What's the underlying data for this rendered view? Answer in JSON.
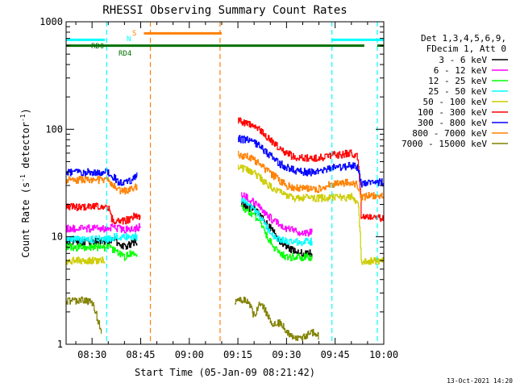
{
  "chart_data": {
    "type": "line",
    "title": "RHESSI Observing Summary Count Rates",
    "xlabel": "Start Time (05-Jan-09 08:21:42)",
    "ylabel_main": "Count Rate (s",
    "ylabel_sup1": "-1",
    "ylabel_mid": " detector",
    "ylabel_sup2": "-1",
    "ylabel_end": ")",
    "x_unit": "minutes since 08:00",
    "xlim": [
      22.0,
      120.0
    ],
    "ylim": [
      1,
      1000
    ],
    "yscale": "log",
    "x_ticks": [
      {
        "v": 30,
        "label": "08:30"
      },
      {
        "v": 45,
        "label": "08:45"
      },
      {
        "v": 60,
        "label": "09:00"
      },
      {
        "v": 75,
        "label": "09:15"
      },
      {
        "v": 90,
        "label": "09:30"
      },
      {
        "v": 105,
        "label": "09:45"
      },
      {
        "v": 120,
        "label": "10:00"
      }
    ],
    "y_ticks": [
      {
        "v": 1,
        "label": "1"
      },
      {
        "v": 10,
        "label": "10"
      },
      {
        "v": 100,
        "label": "100"
      },
      {
        "v": 1000,
        "label": "1000"
      }
    ],
    "legend_header": [
      "Det 1,3,4,5,6,9,",
      "FDecim 1, Att 0"
    ],
    "legend_position": "right",
    "series": [
      {
        "name": "3 - 6 keV",
        "color": "#000000",
        "segments": [
          [
            [
              22,
              9
            ],
            [
              35,
              9
            ],
            [
              37,
              9.5
            ],
            [
              38,
              8.5
            ],
            [
              40,
              8
            ],
            [
              41,
              8.5
            ],
            [
              42,
              8.5
            ],
            [
              43,
              9
            ],
            [
              44,
              9
            ]
          ],
          [
            [
              76,
              20
            ],
            [
              78,
              19
            ],
            [
              80,
              18
            ],
            [
              82,
              16
            ],
            [
              84,
              13
            ],
            [
              86,
              11
            ],
            [
              88,
              9
            ],
            [
              90,
              8
            ],
            [
              92,
              7.5
            ],
            [
              94,
              7.2
            ],
            [
              96,
              7
            ],
            [
              98,
              7
            ]
          ]
        ]
      },
      {
        "name": "6 - 12 keV",
        "color": "#ff00ff",
        "segments": [
          [
            [
              22,
              12
            ],
            [
              35,
              12
            ],
            [
              37,
              12.5
            ],
            [
              38,
              12
            ],
            [
              40,
              11.5
            ],
            [
              42,
              12
            ],
            [
              44,
              12
            ],
            [
              45,
              13
            ]
          ],
          [
            [
              76,
              25
            ],
            [
              78,
              23
            ],
            [
              80,
              21
            ],
            [
              82,
              18
            ],
            [
              84,
              16
            ],
            [
              86,
              14
            ],
            [
              88,
              13
            ],
            [
              90,
              12
            ],
            [
              92,
              11.5
            ],
            [
              94,
              11
            ],
            [
              96,
              11
            ],
            [
              98,
              11
            ]
          ]
        ]
      },
      {
        "name": "12 - 25 keV",
        "color": "#00ff00",
        "segments": [
          [
            [
              22,
              8
            ],
            [
              35,
              8
            ],
            [
              37,
              7.5
            ],
            [
              38,
              7
            ],
            [
              40,
              6.5
            ],
            [
              42,
              7
            ],
            [
              44,
              7
            ]
          ],
          [
            [
              76,
              19
            ],
            [
              78,
              17
            ],
            [
              80,
              16
            ],
            [
              82,
              13
            ],
            [
              84,
              10
            ],
            [
              86,
              8
            ],
            [
              88,
              7
            ],
            [
              90,
              6.5
            ],
            [
              92,
              6.5
            ],
            [
              94,
              6.5
            ],
            [
              96,
              6.5
            ],
            [
              98,
              6.5
            ]
          ]
        ]
      },
      {
        "name": "25 - 50 keV",
        "color": "#00ffff",
        "segments": [
          [
            [
              22,
              9.5
            ],
            [
              35,
              9.5
            ],
            [
              37,
              10
            ],
            [
              40,
              10
            ],
            [
              42,
              10
            ],
            [
              44,
              10
            ]
          ],
          [
            [
              76,
              22
            ],
            [
              78,
              20
            ],
            [
              80,
              18
            ],
            [
              82,
              15
            ],
            [
              84,
              12
            ],
            [
              86,
              10
            ],
            [
              88,
              9.5
            ],
            [
              90,
              9
            ],
            [
              92,
              9
            ],
            [
              94,
              9
            ],
            [
              96,
              9
            ],
            [
              98,
              9
            ]
          ]
        ]
      },
      {
        "name": "50 - 100 keV",
        "color": "#cccc00",
        "segments": [
          [
            [
              22,
              6
            ],
            [
              33,
              6
            ],
            [
              34,
              6
            ]
          ],
          [
            [
              75,
              44
            ],
            [
              78,
              42
            ],
            [
              80,
              39
            ],
            [
              82,
              35
            ],
            [
              84,
              31
            ],
            [
              86,
              28
            ],
            [
              88,
              26
            ],
            [
              90,
              24
            ],
            [
              92,
              23
            ],
            [
              94,
              23
            ],
            [
              96,
              23
            ],
            [
              98,
              23
            ],
            [
              102,
              23
            ],
            [
              104,
              23
            ],
            [
              106,
              24
            ],
            [
              108,
              23
            ],
            [
              110,
              24
            ],
            [
              112,
              20
            ],
            [
              113,
              6
            ],
            [
              120,
              6
            ]
          ]
        ]
      },
      {
        "name": "100 - 300 keV",
        "color": "#ff0000",
        "segments": [
          [
            [
              22,
              19
            ],
            [
              35,
              19
            ],
            [
              36,
              15
            ],
            [
              37,
              14
            ],
            [
              38,
              14
            ],
            [
              40,
              14
            ],
            [
              42,
              15
            ],
            [
              44,
              16
            ],
            [
              45,
              14
            ]
          ],
          [
            [
              75,
              120
            ],
            [
              78,
              115
            ],
            [
              80,
              108
            ],
            [
              82,
              98
            ],
            [
              84,
              85
            ],
            [
              86,
              75
            ],
            [
              88,
              66
            ],
            [
              90,
              60
            ],
            [
              92,
              56
            ],
            [
              94,
              54
            ],
            [
              96,
              54
            ],
            [
              98,
              54
            ],
            [
              100,
              54
            ],
            [
              102,
              56
            ],
            [
              104,
              58
            ],
            [
              106,
              58
            ],
            [
              108,
              59
            ],
            [
              110,
              60
            ],
            [
              112,
              55
            ],
            [
              113,
              15
            ],
            [
              115,
              15
            ],
            [
              120,
              15
            ]
          ]
        ]
      },
      {
        "name": "300 - 800 keV",
        "color": "#0000ff",
        "segments": [
          [
            [
              22,
              40
            ],
            [
              35,
              40
            ],
            [
              37,
              35
            ],
            [
              38,
              32
            ],
            [
              40,
              32
            ],
            [
              42,
              34
            ],
            [
              44,
              38
            ]
          ],
          [
            [
              75,
              82
            ],
            [
              78,
              80
            ],
            [
              80,
              76
            ],
            [
              82,
              68
            ],
            [
              84,
              60
            ],
            [
              86,
              54
            ],
            [
              88,
              48
            ],
            [
              90,
              44
            ],
            [
              92,
              42
            ],
            [
              94,
              41
            ],
            [
              96,
              40
            ],
            [
              98,
              40
            ],
            [
              100,
              40
            ],
            [
              102,
              42
            ],
            [
              104,
              44
            ],
            [
              106,
              44
            ],
            [
              108,
              45
            ],
            [
              110,
              46
            ],
            [
              112,
              44
            ],
            [
              113,
              30
            ],
            [
              115,
              32
            ],
            [
              120,
              32
            ]
          ]
        ]
      },
      {
        "name": "800 - 7000 keV",
        "color": "#ff8000",
        "segments": [
          [
            [
              22,
              34
            ],
            [
              35,
              34
            ],
            [
              37,
              29
            ],
            [
              38,
              27
            ],
            [
              40,
              27
            ],
            [
              42,
              28
            ],
            [
              44,
              30
            ]
          ],
          [
            [
              75,
              58
            ],
            [
              78,
              56
            ],
            [
              80,
              52
            ],
            [
              82,
              46
            ],
            [
              84,
              41
            ],
            [
              86,
              37
            ],
            [
              88,
              33
            ],
            [
              90,
              30
            ],
            [
              92,
              29
            ],
            [
              94,
              28
            ],
            [
              96,
              28
            ],
            [
              98,
              28
            ],
            [
              100,
              28
            ],
            [
              102,
              30
            ],
            [
              104,
              31
            ],
            [
              106,
              31
            ],
            [
              108,
              32
            ],
            [
              110,
              32
            ],
            [
              112,
              30
            ],
            [
              113,
              23
            ],
            [
              115,
              24
            ],
            [
              120,
              24
            ]
          ]
        ]
      },
      {
        "name": "7000 - 15000 keV",
        "color": "#808000",
        "segments": [
          [
            [
              22,
              2.5
            ],
            [
              28,
              2.6
            ],
            [
              30,
              2.4
            ],
            [
              32,
              1.6
            ],
            [
              33,
              1.2
            ]
          ],
          [
            [
              74,
              2.5
            ],
            [
              78,
              2.6
            ],
            [
              80,
              1.8
            ],
            [
              82,
              2.5
            ],
            [
              84,
              1.9
            ],
            [
              86,
              1.5
            ],
            [
              88,
              1.6
            ],
            [
              90,
              1.3
            ],
            [
              92,
              1.2
            ],
            [
              94,
              1.1
            ],
            [
              96,
              1.2
            ],
            [
              98,
              1.3
            ],
            [
              100,
              1.2
            ]
          ]
        ]
      }
    ],
    "flags": [
      {
        "label": "RD0",
        "color": "#007000",
        "y_level": 600,
        "segments": [
          [
            22,
            114
          ],
          [
            118,
            120
          ]
        ]
      },
      {
        "label": "RD4",
        "color": "#007000",
        "y_level": 520,
        "segments": []
      },
      {
        "label": "N",
        "color": "#00ffff",
        "y_level": 680,
        "segments": [
          [
            22,
            34
          ],
          [
            104,
            120
          ]
        ]
      },
      {
        "label": "S",
        "color": "#ff8000",
        "y_level": 780,
        "segments": [
          [
            46,
            70
          ]
        ]
      }
    ],
    "vlines": [
      {
        "x": 34.5,
        "color": "#00ffff",
        "style": "dashed"
      },
      {
        "x": 48.0,
        "color": "#ff8000",
        "style": "dashed"
      },
      {
        "x": 69.5,
        "color": "#ff8000",
        "style": "dashed"
      },
      {
        "x": 104.0,
        "color": "#00ffff",
        "style": "dashed"
      },
      {
        "x": 118.0,
        "color": "#00ffff",
        "style": "dashed"
      }
    ],
    "grid": false,
    "timestamp": "13-Oct-2021 14:20"
  }
}
